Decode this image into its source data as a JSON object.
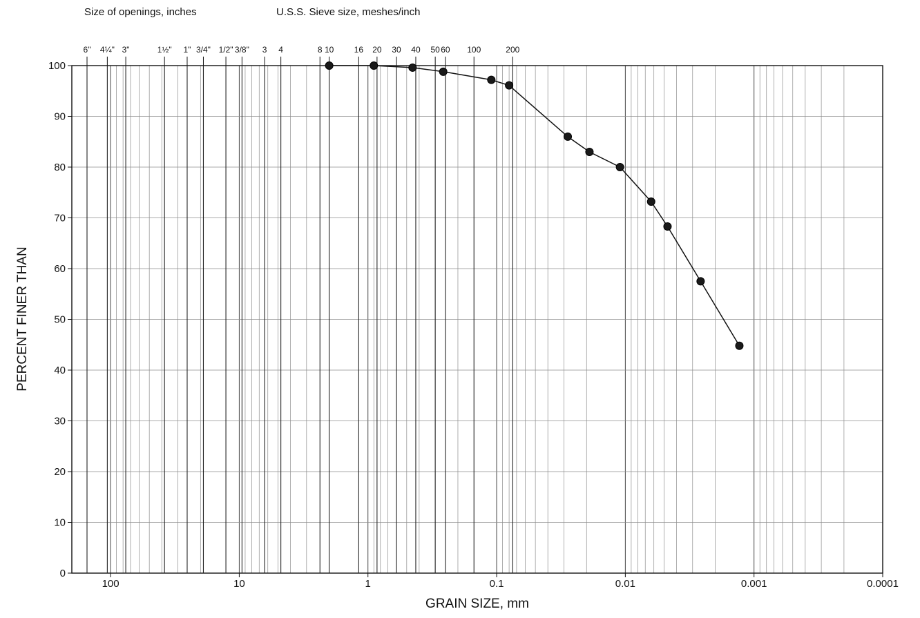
{
  "header": {
    "openings_label": "Size of openings, inches",
    "sieve_label": "U.S.S. Sieve size, meshes/inch"
  },
  "chart_data": {
    "type": "line",
    "xlabel": "GRAIN SIZE, mm",
    "ylabel": "PERCENT FINER THAN",
    "x_scale": "log",
    "x_reversed": true,
    "xlim": [
      200,
      0.0001
    ],
    "ylim": [
      0,
      100
    ],
    "grid": true,
    "x_ticks": [
      {
        "value": 100,
        "label": "100"
      },
      {
        "value": 10,
        "label": "10"
      },
      {
        "value": 1,
        "label": "1"
      },
      {
        "value": 0.1,
        "label": "0.1"
      },
      {
        "value": 0.01,
        "label": "0.01"
      },
      {
        "value": 0.001,
        "label": "0.001"
      },
      {
        "value": 0.0001,
        "label": "0.0001"
      }
    ],
    "y_ticks": [
      0,
      10,
      20,
      30,
      40,
      50,
      60,
      70,
      80,
      90,
      100
    ],
    "top_sieve_labels": [
      {
        "value": 152.4,
        "label": "6\""
      },
      {
        "value": 106,
        "label": "4¼\""
      },
      {
        "value": 76.2,
        "label": "3\""
      },
      {
        "value": 38.1,
        "label": "1½\""
      },
      {
        "value": 25.4,
        "label": "1\""
      },
      {
        "value": 19.0,
        "label": "3/4\""
      },
      {
        "value": 12.7,
        "label": "1/2\""
      },
      {
        "value": 9.52,
        "label": "3/8\""
      },
      {
        "value": 6.35,
        "label": "3"
      },
      {
        "value": 4.75,
        "label": "4"
      },
      {
        "value": 2.36,
        "label": "8"
      },
      {
        "value": 2.0,
        "label": "10"
      },
      {
        "value": 1.18,
        "label": "16"
      },
      {
        "value": 0.85,
        "label": "20"
      },
      {
        "value": 0.6,
        "label": "30"
      },
      {
        "value": 0.425,
        "label": "40"
      },
      {
        "value": 0.3,
        "label": "50"
      },
      {
        "value": 0.25,
        "label": "60"
      },
      {
        "value": 0.15,
        "label": "100"
      },
      {
        "value": 0.075,
        "label": "200"
      }
    ],
    "series": [
      {
        "x": [
          2.0,
          0.9,
          0.45,
          0.26,
          0.11,
          0.08,
          0.028,
          0.019,
          0.011,
          0.0063,
          0.0047,
          0.0026,
          0.0013
        ],
        "y": [
          100,
          100,
          99.6,
          98.8,
          97.2,
          96.1,
          86.0,
          83.0,
          80.0,
          73.2,
          68.3,
          57.5,
          44.8
        ]
      }
    ]
  }
}
